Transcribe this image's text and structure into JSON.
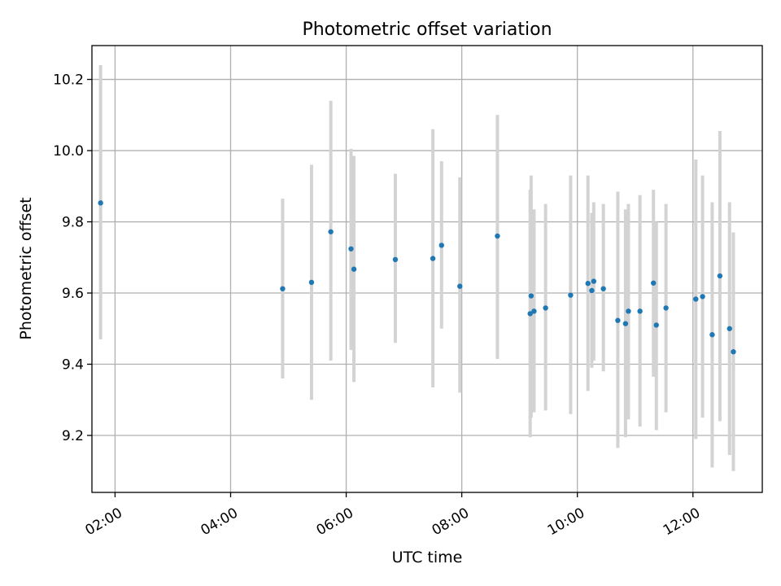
{
  "chart_data": {
    "type": "scatter",
    "title": "Photometric offset variation",
    "xlabel": "UTC time",
    "ylabel": "Photometric offset",
    "xlim": [
      "01:36",
      "13:12"
    ],
    "ylim": [
      9.04,
      10.295
    ],
    "x_ticks": [
      "02:00",
      "04:00",
      "06:00",
      "08:00",
      "10:00",
      "12:00"
    ],
    "y_ticks": [
      "9.2",
      "9.4",
      "9.6",
      "9.8",
      "10.0",
      "10.2"
    ],
    "grid": true,
    "colors": {
      "point": "#1f77b4",
      "errorbar": "#d3d3d3",
      "grid": "#b0b0b0"
    },
    "series": [
      {
        "points": [
          {
            "x": "01:45",
            "y": 9.853,
            "ylow": 9.47,
            "yhigh": 10.24
          },
          {
            "x": "04:54",
            "y": 9.612,
            "ylow": 9.36,
            "yhigh": 9.865
          },
          {
            "x": "05:24",
            "y": 9.63,
            "ylow": 9.3,
            "yhigh": 9.96
          },
          {
            "x": "05:44",
            "y": 9.772,
            "ylow": 9.41,
            "yhigh": 10.14
          },
          {
            "x": "06:05",
            "y": 9.724,
            "ylow": 9.44,
            "yhigh": 10.005
          },
          {
            "x": "06:08",
            "y": 9.667,
            "ylow": 9.35,
            "yhigh": 9.985
          },
          {
            "x": "06:51",
            "y": 9.694,
            "ylow": 9.46,
            "yhigh": 9.935
          },
          {
            "x": "07:30",
            "y": 9.697,
            "ylow": 9.335,
            "yhigh": 10.06
          },
          {
            "x": "07:39",
            "y": 9.734,
            "ylow": 9.5,
            "yhigh": 9.97
          },
          {
            "x": "07:58",
            "y": 9.619,
            "ylow": 9.32,
            "yhigh": 9.925
          },
          {
            "x": "08:37",
            "y": 9.76,
            "ylow": 9.415,
            "yhigh": 10.1
          },
          {
            "x": "09:11",
            "y": 9.542,
            "ylow": 9.195,
            "yhigh": 9.89
          },
          {
            "x": "09:12",
            "y": 9.592,
            "ylow": 9.25,
            "yhigh": 9.93
          },
          {
            "x": "09:15",
            "y": 9.549,
            "ylow": 9.265,
            "yhigh": 9.835
          },
          {
            "x": "09:27",
            "y": 9.558,
            "ylow": 9.27,
            "yhigh": 9.85
          },
          {
            "x": "09:53",
            "y": 9.594,
            "ylow": 9.26,
            "yhigh": 9.93
          },
          {
            "x": "10:11",
            "y": 9.627,
            "ylow": 9.325,
            "yhigh": 9.93
          },
          {
            "x": "10:15",
            "y": 9.607,
            "ylow": 9.39,
            "yhigh": 9.825
          },
          {
            "x": "10:17",
            "y": 9.633,
            "ylow": 9.41,
            "yhigh": 9.855
          },
          {
            "x": "10:27",
            "y": 9.612,
            "ylow": 9.38,
            "yhigh": 9.85
          },
          {
            "x": "10:42",
            "y": 9.523,
            "ylow": 9.165,
            "yhigh": 9.885
          },
          {
            "x": "10:50",
            "y": 9.514,
            "ylow": 9.195,
            "yhigh": 9.835
          },
          {
            "x": "10:53",
            "y": 9.549,
            "ylow": 9.245,
            "yhigh": 9.85
          },
          {
            "x": "11:05",
            "y": 9.549,
            "ylow": 9.225,
            "yhigh": 9.875
          },
          {
            "x": "11:19",
            "y": 9.628,
            "ylow": 9.365,
            "yhigh": 9.89
          },
          {
            "x": "11:22",
            "y": 9.51,
            "ylow": 9.215,
            "yhigh": 9.8
          },
          {
            "x": "11:32",
            "y": 9.558,
            "ylow": 9.265,
            "yhigh": 9.85
          },
          {
            "x": "12:03",
            "y": 9.583,
            "ylow": 9.19,
            "yhigh": 9.975
          },
          {
            "x": "12:10",
            "y": 9.59,
            "ylow": 9.25,
            "yhigh": 9.93
          },
          {
            "x": "12:20",
            "y": 9.483,
            "ylow": 9.11,
            "yhigh": 9.855
          },
          {
            "x": "12:28",
            "y": 9.648,
            "ylow": 9.24,
            "yhigh": 10.055
          },
          {
            "x": "12:38",
            "y": 9.5,
            "ylow": 9.145,
            "yhigh": 9.855
          },
          {
            "x": "12:42",
            "y": 9.435,
            "ylow": 9.1,
            "yhigh": 9.77
          }
        ]
      }
    ]
  }
}
